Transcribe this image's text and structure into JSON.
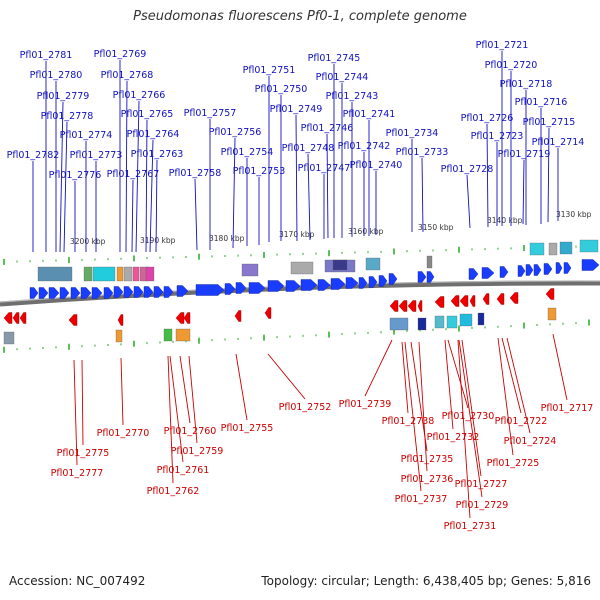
{
  "title": "Pseudomonas fluorescens Pf0-1, complete genome",
  "footer": {
    "accession": "Accession: NC_007492",
    "summary": "Topology: circular; Length: 6,438,405 bp; Genes: 5,816"
  },
  "colors": {
    "forward_label": "#1010c0",
    "reverse_label": "#cc0000",
    "forward_gene": "#1a3cff",
    "reverse_gene": "#ee0000",
    "backbone": "#888888",
    "tick": "#22aa22"
  },
  "scale": {
    "unit": "kbp",
    "ticks": [
      "3200 kbp",
      "3190 kbp",
      "3180 kbp",
      "3170 kbp",
      "3160 kbp",
      "3150 kbp",
      "3140 kbp",
      "3130 kbp"
    ]
  },
  "forward_labels": [
    "Pfl01_2781",
    "Pfl01_2780",
    "Pfl01_2779",
    "Pfl01_2778",
    "Pfl01_2782",
    "Pfl01_2774",
    "Pfl01_2776",
    "Pfl01_2773",
    "Pfl01_2769",
    "Pfl01_2768",
    "Pfl01_2766",
    "Pfl01_2765",
    "Pfl01_2764",
    "Pfl01_2763",
    "Pfl01_2767",
    "Pfl01_2757",
    "Pfl01_2756",
    "Pfl01_2758",
    "Pfl01_2754",
    "Pfl01_2753",
    "Pfl01_2751",
    "Pfl01_2750",
    "Pfl01_2749",
    "Pfl01_2748",
    "Pfl01_2747",
    "Pfl01_2745",
    "Pfl01_2744",
    "Pfl01_2743",
    "Pfl01_2746",
    "Pfl01_2741",
    "Pfl01_2742",
    "Pfl01_2740",
    "Pfl01_2734",
    "Pfl01_2733",
    "Pfl01_2728",
    "Pfl01_2721",
    "Pfl01_2720",
    "Pfl01_2718",
    "Pfl01_2716",
    "Pfl01_2726",
    "Pfl01_2723",
    "Pfl01_2715",
    "Pfl01_2719",
    "Pfl01_2714"
  ],
  "reverse_labels": [
    "Pfl01_2775",
    "Pfl01_2777",
    "Pfl01_2770",
    "Pfl01_2760",
    "Pfl01_2759",
    "Pfl01_2761",
    "Pfl01_2762",
    "Pfl01_2755",
    "Pfl01_2752",
    "Pfl01_2739",
    "Pfl01_2738",
    "Pfl01_2735",
    "Pfl01_2736",
    "Pfl01_2737",
    "Pfl01_2732",
    "Pfl01_2730",
    "Pfl01_2727",
    "Pfl01_2729",
    "Pfl01_2731",
    "Pfl01_2722",
    "Pfl01_2724",
    "Pfl01_2725",
    "Pfl01_2717"
  ]
}
